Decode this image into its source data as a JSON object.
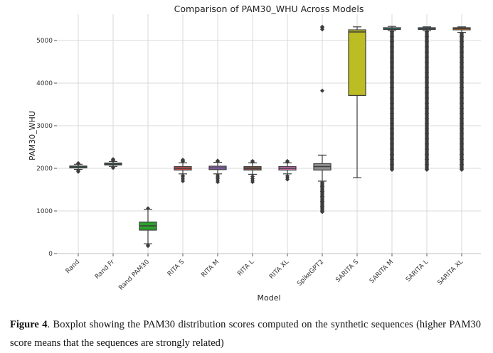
{
  "chart_data": {
    "type": "boxplot",
    "title": "Comparison of PAM30_WHU Across Models",
    "xlabel": "Model",
    "ylabel": "PAM30_WHU",
    "ylim": [
      -100,
      5550
    ],
    "yticks": [
      0,
      1000,
      2000,
      3000,
      4000,
      5000
    ],
    "grid": true,
    "categories": [
      "Rand",
      "Rand Fr",
      "Rand PAM30",
      "RITA S",
      "RITA M",
      "RITA L",
      "RITA XL",
      "SpikeGPT2",
      "SARITA S",
      "SARITA M",
      "SARITA L",
      "SARITA XL"
    ],
    "series": [
      {
        "category": "Rand",
        "color": "#3f8a8c",
        "whisker_low": 1975,
        "q1": 2010,
        "median": 2035,
        "q3": 2055,
        "whisker_high": 2095,
        "outliers": [
          1920,
          1940,
          2110,
          2120
        ],
        "outlier_range": null
      },
      {
        "category": "Rand Fr",
        "color": "#3b8a6e",
        "whisker_low": 2045,
        "q1": 2080,
        "median": 2100,
        "q3": 2125,
        "whisker_high": 2160,
        "outliers": [
          2010,
          2020,
          2180,
          2200,
          2215
        ],
        "outlier_range": null
      },
      {
        "category": "Rand PAM30",
        "color": "#2ca02c",
        "whisker_low": 230,
        "q1": 550,
        "median": 650,
        "q3": 740,
        "whisker_high": 1040,
        "outliers": [
          180,
          200,
          1060
        ],
        "outlier_range": null
      },
      {
        "category": "RITA S",
        "color": "#d9534f",
        "whisker_low": 1870,
        "q1": 1960,
        "median": 2000,
        "q3": 2040,
        "whisker_high": 2130,
        "outliers": [
          1700,
          1750,
          1800,
          1830,
          2160,
          2180,
          2200
        ],
        "outlier_range": null
      },
      {
        "category": "RITA M",
        "color": "#9467bd",
        "whisker_low": 1870,
        "q1": 1970,
        "median": 2010,
        "q3": 2050,
        "whisker_high": 2140,
        "outliers": [
          1680,
          1720,
          1760,
          1800,
          1840,
          2160,
          2180
        ],
        "outlier_range": null
      },
      {
        "category": "RITA L",
        "color": "#8c564b",
        "whisker_low": 1860,
        "q1": 1960,
        "median": 2000,
        "q3": 2040,
        "whisker_high": 2130,
        "outliers": [
          1680,
          1720,
          1760,
          1810,
          2150,
          2170
        ],
        "outlier_range": null
      },
      {
        "category": "RITA XL",
        "color": "#e377c2",
        "whisker_low": 1870,
        "q1": 1960,
        "median": 2000,
        "q3": 2040,
        "whisker_high": 2130,
        "outliers": [
          1740,
          1780,
          1820,
          2150,
          2170
        ],
        "outlier_range": null
      },
      {
        "category": "SpikeGPT2",
        "color": "#8c8c8c",
        "whisker_low": 1700,
        "q1": 1960,
        "median": 2040,
        "q3": 2110,
        "whisker_high": 2310,
        "outliers": [
          3820,
          5260,
          5300,
          5320
        ],
        "outlier_range": [
          980,
          1690
        ]
      },
      {
        "category": "SARITA S",
        "color": "#bcbd22",
        "whisker_low": 1780,
        "q1": 3710,
        "median": 5200,
        "q3": 5250,
        "whisker_high": 5320,
        "outliers": [],
        "outlier_range": null
      },
      {
        "category": "SARITA M",
        "color": "#17becf",
        "whisker_low": 5230,
        "q1": 5265,
        "median": 5285,
        "q3": 5300,
        "whisker_high": 5330,
        "outliers": [],
        "outlier_range": [
          1970,
          5220
        ]
      },
      {
        "category": "SARITA L",
        "color": "#1f77b4",
        "whisker_low": 5230,
        "q1": 5265,
        "median": 5285,
        "q3": 5300,
        "whisker_high": 5320,
        "outliers": [],
        "outlier_range": [
          1970,
          5220
        ]
      },
      {
        "category": "SARITA XL",
        "color": "#ff7f0e",
        "whisker_low": 5190,
        "q1": 5250,
        "median": 5280,
        "q3": 5300,
        "whisker_high": 5320,
        "outliers": [],
        "outlier_range": [
          1970,
          5180
        ]
      }
    ]
  },
  "caption": {
    "label": "Figure 4",
    "text": ". Boxplot showing the PAM30 distribution scores computed on the synthetic sequences (higher PAM30 score means that the sequences are strongly related)"
  }
}
